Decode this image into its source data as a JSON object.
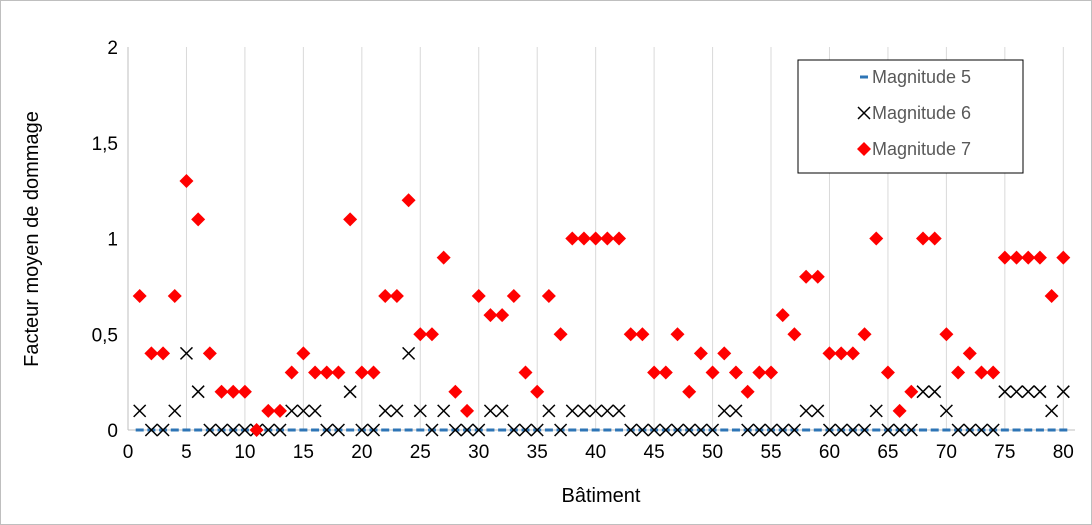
{
  "chart_data": {
    "type": "scatter",
    "xlabel": "Bâtiment",
    "ylabel": "Facteur moyen de dommage",
    "xlim": [
      0,
      81
    ],
    "ylim": [
      0,
      2
    ],
    "x_ticks": [
      "0",
      "5",
      "10",
      "15",
      "20",
      "25",
      "30",
      "35",
      "40",
      "45",
      "50",
      "55",
      "60",
      "65",
      "70",
      "75",
      "80"
    ],
    "y_ticks": [
      "0",
      "0,5",
      "1",
      "1,5",
      "2"
    ],
    "grid": "vertical",
    "legend_position": "top-right",
    "series": [
      {
        "name": "Magnitude 5",
        "marker": "dash",
        "color": "#2e75b6",
        "x": [
          1,
          2,
          3,
          4,
          5,
          6,
          7,
          8,
          9,
          10,
          11,
          12,
          13,
          14,
          15,
          16,
          17,
          18,
          19,
          20,
          21,
          22,
          23,
          24,
          25,
          26,
          27,
          28,
          29,
          30,
          31,
          32,
          33,
          34,
          35,
          36,
          37,
          38,
          39,
          40,
          41,
          42,
          43,
          44,
          45,
          46,
          47,
          48,
          49,
          50,
          51,
          52,
          53,
          54,
          55,
          56,
          57,
          58,
          59,
          60,
          61,
          62,
          63,
          64,
          65,
          66,
          67,
          68,
          69,
          70,
          71,
          72,
          73,
          74,
          75,
          76,
          77,
          78,
          79,
          80
        ],
        "y": [
          0,
          0,
          0,
          0,
          0,
          0,
          0,
          0,
          0,
          0,
          0,
          0,
          0,
          0,
          0,
          0,
          0,
          0,
          0,
          0,
          0,
          0,
          0,
          0,
          0,
          0,
          0,
          0,
          0,
          0,
          0,
          0,
          0,
          0,
          0,
          0,
          0,
          0,
          0,
          0,
          0,
          0,
          0,
          0,
          0,
          0,
          0,
          0,
          0,
          0,
          0,
          0,
          0,
          0,
          0,
          0,
          0,
          0,
          0,
          0,
          0,
          0,
          0,
          0,
          0,
          0,
          0,
          0,
          0,
          0,
          0,
          0,
          0,
          0,
          0,
          0,
          0,
          0,
          0,
          0
        ]
      },
      {
        "name": "Magnitude 6",
        "marker": "x",
        "color": "#000000",
        "x": [
          1,
          2,
          3,
          4,
          5,
          6,
          7,
          8,
          9,
          10,
          11,
          12,
          13,
          14,
          15,
          16,
          17,
          18,
          19,
          20,
          21,
          22,
          23,
          24,
          25,
          26,
          27,
          28,
          29,
          30,
          31,
          32,
          33,
          34,
          35,
          36,
          37,
          38,
          39,
          40,
          41,
          42,
          43,
          44,
          45,
          46,
          47,
          48,
          49,
          50,
          51,
          52,
          53,
          54,
          55,
          56,
          57,
          58,
          59,
          60,
          61,
          62,
          63,
          64,
          65,
          66,
          67,
          68,
          69,
          70,
          71,
          72,
          73,
          74,
          75,
          76,
          77,
          78,
          79,
          80
        ],
        "y": [
          0.1,
          0,
          0,
          0.1,
          0.4,
          0.2,
          0,
          0,
          0,
          0,
          0,
          0,
          0,
          0.1,
          0.1,
          0.1,
          0,
          0,
          0.2,
          0,
          0,
          0.1,
          0.1,
          0.4,
          0.1,
          0,
          0.1,
          0,
          0,
          0,
          0.1,
          0.1,
          0,
          0,
          0,
          0.1,
          0,
          0.1,
          0.1,
          0.1,
          0.1,
          0.1,
          0,
          0,
          0,
          0,
          0,
          0,
          0,
          0,
          0.1,
          0.1,
          0,
          0,
          0,
          0,
          0,
          0.1,
          0.1,
          0,
          0,
          0,
          0,
          0.1,
          0,
          0,
          0,
          0.2,
          0.2,
          0.1,
          0,
          0,
          0,
          0,
          0.2,
          0.2,
          0.2,
          0.2,
          0.1,
          0.2
        ]
      },
      {
        "name": "Magnitude 7",
        "marker": "diamond",
        "color": "#ff0000",
        "x": [
          1,
          2,
          3,
          4,
          5,
          6,
          7,
          8,
          9,
          10,
          11,
          12,
          13,
          14,
          15,
          16,
          17,
          18,
          19,
          20,
          21,
          22,
          23,
          24,
          25,
          26,
          27,
          28,
          29,
          30,
          31,
          32,
          33,
          34,
          35,
          36,
          37,
          38,
          39,
          40,
          41,
          42,
          43,
          44,
          45,
          46,
          47,
          48,
          49,
          50,
          51,
          52,
          53,
          54,
          55,
          56,
          57,
          58,
          59,
          60,
          61,
          62,
          63,
          64,
          65,
          66,
          67,
          68,
          69,
          70,
          71,
          72,
          73,
          74,
          75,
          76,
          77,
          78,
          79,
          80
        ],
        "y": [
          0.7,
          0.4,
          0.4,
          0.7,
          1.3,
          1.1,
          0.4,
          0.2,
          0.2,
          0.2,
          0,
          0.1,
          0.1,
          0.3,
          0.4,
          0.3,
          0.3,
          0.3,
          1.1,
          0.3,
          0.3,
          0.7,
          0.7,
          1.2,
          0.5,
          0.5,
          0.9,
          0.2,
          0.1,
          0.7,
          0.6,
          0.6,
          0.7,
          0.3,
          0.2,
          0.7,
          0.5,
          1,
          1,
          1,
          1,
          1,
          0.5,
          0.5,
          0.3,
          0.3,
          0.5,
          0.2,
          0.4,
          0.3,
          0.4,
          0.3,
          0.2,
          0.3,
          0.3,
          0.6,
          0.5,
          0.8,
          0.8,
          0.4,
          0.4,
          0.4,
          0.5,
          1,
          0.3,
          0.1,
          0.2,
          1,
          1,
          0.5,
          0.3,
          0.4,
          0.3,
          0.3,
          0.9,
          0.9,
          0.9,
          0.9,
          0.7,
          0.9
        ]
      }
    ]
  }
}
